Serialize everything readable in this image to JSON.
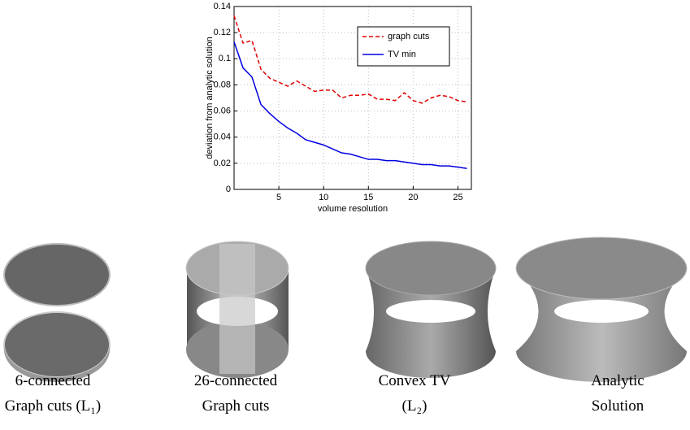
{
  "chart_data": {
    "type": "line",
    "xlabel": "volume resolution",
    "ylabel": "deviation from analytic solution",
    "x": [
      0,
      1,
      2,
      3,
      4,
      5,
      6,
      7,
      8,
      9,
      10,
      11,
      12,
      13,
      14,
      15,
      16,
      17,
      18,
      19,
      20,
      21,
      22,
      23,
      24,
      25,
      26
    ],
    "series": [
      {
        "name": "graph cuts",
        "color": "#e00000",
        "linestyle": "dashed",
        "values": [
          0.133,
          0.112,
          0.114,
          0.092,
          0.085,
          0.082,
          0.079,
          0.083,
          0.079,
          0.075,
          0.076,
          0.076,
          0.07,
          0.072,
          0.072,
          0.073,
          0.069,
          0.069,
          0.068,
          0.074,
          0.068,
          0.066,
          0.07,
          0.072,
          0.071,
          0.068,
          0.067
        ]
      },
      {
        "name": "TV min",
        "color": "#0000e0",
        "linestyle": "solid",
        "values": [
          0.113,
          0.093,
          0.086,
          0.065,
          0.058,
          0.052,
          0.047,
          0.043,
          0.038,
          0.036,
          0.034,
          0.031,
          0.028,
          0.027,
          0.025,
          0.023,
          0.023,
          0.022,
          0.022,
          0.021,
          0.02,
          0.019,
          0.019,
          0.018,
          0.018,
          0.017,
          0.016
        ]
      }
    ],
    "xlim": [
      0,
      26.5
    ],
    "xticks": [
      5,
      10,
      15,
      20,
      25
    ],
    "ylim": [
      0,
      0.14
    ],
    "yticks": [
      0,
      0.02,
      0.04,
      0.06,
      0.08,
      0.1,
      0.12,
      0.14
    ],
    "grid": true,
    "legend": "upper-right"
  },
  "figures": [
    {
      "caption": [
        "6-connected",
        "Graph cuts (L₁)"
      ]
    },
    {
      "caption": [
        "26-connected",
        "Graph cuts"
      ]
    },
    {
      "caption": [
        "Convex TV",
        "(L₂)"
      ]
    },
    {
      "caption": [
        "Analytic",
        "Solution"
      ]
    }
  ]
}
